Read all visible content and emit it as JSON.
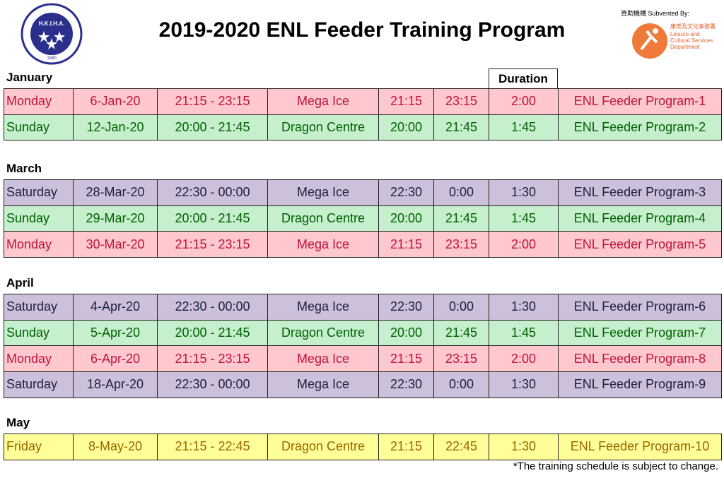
{
  "header": {
    "title": "2019-2020 ENL Feeder Training Program",
    "logo_text": "H.K.I.H.A.",
    "logo_year": "1980",
    "sponsor_label": "資助機構 Subvented By:",
    "sponsor_name_zh": "康樂及文化事務署",
    "sponsor_name_en": "Leisure and Cultural Services Department"
  },
  "table": {
    "duration_header": "Duration",
    "sections": [
      {
        "month": "January",
        "rows": [
          {
            "cells": [
              "Monday",
              "6-Jan-20",
              "21:15 - 23:15",
              "Mega Ice",
              "21:15",
              "23:15",
              "2:00",
              "ENL Feeder Program-1"
            ],
            "fill": "#ffc7ce",
            "color": "#c0143c"
          },
          {
            "cells": [
              "Sunday",
              "12-Jan-20",
              "20:00 - 21:45",
              "Dragon Centre",
              "20:00",
              "21:45",
              "1:45",
              "ENL Feeder Program-2"
            ],
            "fill": "#c6efce",
            "color": "#006100"
          }
        ]
      },
      {
        "month": "March",
        "rows": [
          {
            "cells": [
              "Saturday",
              "28-Mar-20",
              "22:30 - 00:00",
              "Mega Ice",
              "22:30",
              "0:00",
              "1:30",
              "ENL Feeder Program-3"
            ],
            "fill": "#ccc0da",
            "color": "#1f1f3f"
          },
          {
            "cells": [
              "Sunday",
              "29-Mar-20",
              "20:00 - 21:45",
              "Dragon Centre",
              "20:00",
              "21:45",
              "1:45",
              "ENL Feeder Program-4"
            ],
            "fill": "#c6efce",
            "color": "#006100"
          },
          {
            "cells": [
              "Monday",
              "30-Mar-20",
              "21:15 - 23:15",
              "Mega Ice",
              "21:15",
              "23:15",
              "2:00",
              "ENL Feeder Program-5"
            ],
            "fill": "#ffc7ce",
            "color": "#c0143c"
          }
        ]
      },
      {
        "month": "April",
        "rows": [
          {
            "cells": [
              "Saturday",
              "4-Apr-20",
              "22:30 - 00:00",
              "Mega Ice",
              "22:30",
              "0:00",
              "1:30",
              "ENL Feeder Program-6"
            ],
            "fill": "#ccc0da",
            "color": "#1f1f3f"
          },
          {
            "cells": [
              "Sunday",
              "5-Apr-20",
              "20:00 - 21:45",
              "Dragon Centre",
              "20:00",
              "21:45",
              "1:45",
              "ENL Feeder Program-7"
            ],
            "fill": "#c6efce",
            "color": "#006100"
          },
          {
            "cells": [
              "Monday",
              "6-Apr-20",
              "21:15 - 23:15",
              "Mega Ice",
              "21:15",
              "23:15",
              "2:00",
              "ENL Feeder Program-8"
            ],
            "fill": "#ffc7ce",
            "color": "#c0143c"
          },
          {
            "cells": [
              "Saturday",
              "18-Apr-20",
              "22:30 - 00:00",
              "Mega Ice",
              "22:30",
              "0:00",
              "1:30",
              "ENL Feeder Program-9"
            ],
            "fill": "#ccc0da",
            "color": "#1f1f3f"
          }
        ]
      },
      {
        "month": "May",
        "rows": [
          {
            "cells": [
              "Friday",
              "8-May-20",
              "21:15 - 22:45",
              "Dragon Centre",
              "21:15",
              "22:45",
              "1:30",
              "ENL Feeder Program-10"
            ],
            "fill": "#ffff99",
            "color": "#9c6500"
          }
        ]
      }
    ]
  },
  "footnote": "*The training schedule is subject to change."
}
